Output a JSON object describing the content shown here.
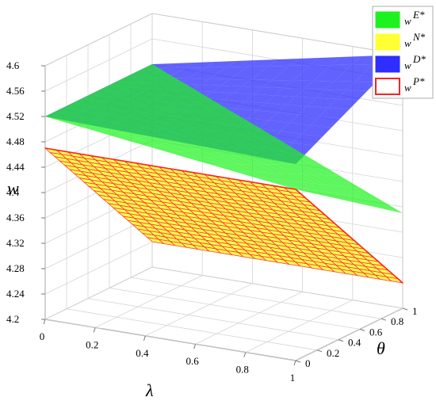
{
  "chart_data": {
    "type": "surface3d",
    "zlabel": "w",
    "xlabel": "λ",
    "ylabel": "θ",
    "xlim": [
      0,
      1
    ],
    "ylim": [
      0,
      1
    ],
    "zlim": [
      4.2,
      4.6
    ],
    "z_ticks": [
      "4.6",
      "4.56",
      "4.52",
      "4.48",
      "4.44",
      "4.4",
      "4.36",
      "4.32",
      "4.28",
      "4.24",
      "4.2"
    ],
    "x_ticks": [
      "0",
      "0.2",
      "0.4",
      "0.6",
      "0.8",
      "1"
    ],
    "y_ticks": [
      "0",
      "0.2",
      "0.4",
      "0.6",
      "0.8",
      "1"
    ],
    "grid": true,
    "legend_position": "top-right",
    "series": [
      {
        "name": "w^{E*}",
        "legend_label": "w",
        "legend_sup": "E*",
        "color": "#1ef21e",
        "corner_values": {
          "lambda0_theta0": 4.52,
          "lambda0_theta1": 4.52,
          "lambda1_theta0": 4.47,
          "lambda1_theta1": 4.35
        }
      },
      {
        "name": "w^{N*}",
        "legend_label": "w",
        "legend_sup": "N*",
        "color": "#ffff33",
        "corner_values": {
          "lambda0_theta0": 4.47,
          "lambda0_theta1": 4.24,
          "lambda1_theta0": 4.47,
          "lambda1_theta1": 4.24
        }
      },
      {
        "name": "w^{D*}",
        "legend_label": "w",
        "legend_sup": "D*",
        "color": "#2e2eff",
        "corner_values": {
          "lambda0_theta0": 4.52,
          "lambda0_theta1": 4.52,
          "lambda1_theta0": 4.51,
          "lambda1_theta1": 4.6
        }
      },
      {
        "name": "w^{P*}",
        "legend_label": "w",
        "legend_sup": "P*",
        "color": "#ff2020",
        "style": "wireframe",
        "corner_values": {
          "lambda0_theta0": 4.47,
          "lambda0_theta1": 4.24,
          "lambda1_theta0": 4.47,
          "lambda1_theta1": 4.24
        }
      }
    ]
  }
}
